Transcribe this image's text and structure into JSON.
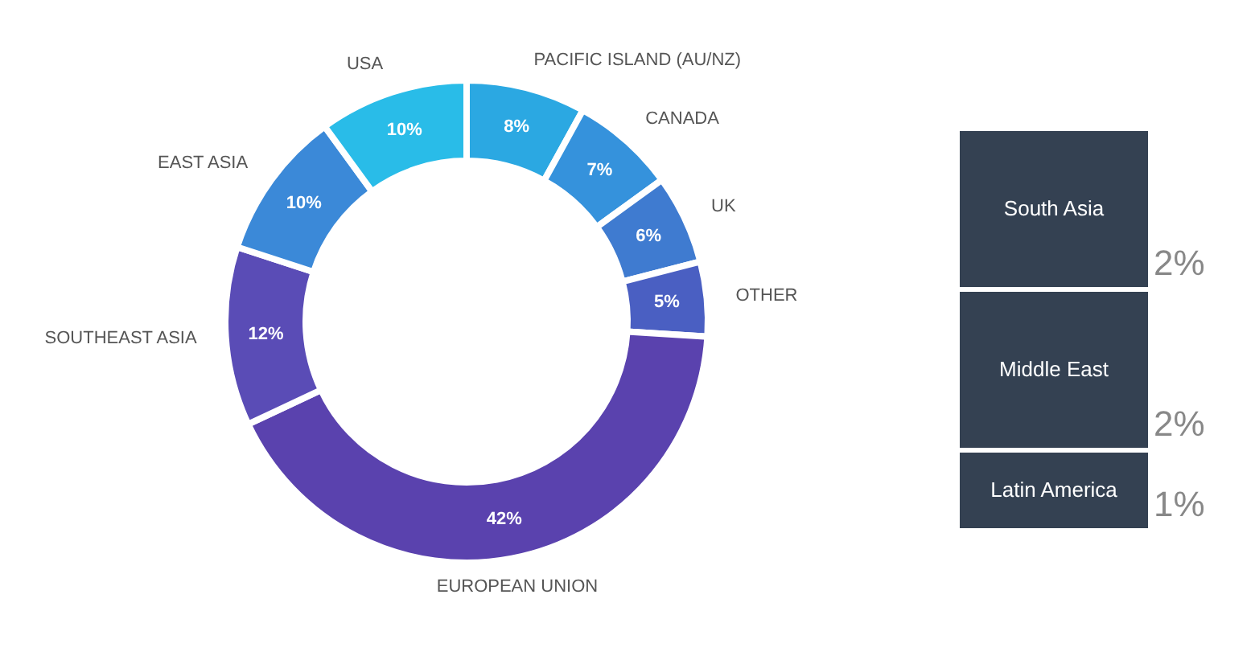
{
  "chart_data": [
    {
      "type": "donut",
      "categories": [
        "PACIFIC ISLAND (AU/NZ)",
        "CANADA",
        "UK",
        "OTHER",
        "EUROPEAN UNION",
        "SOUTHEAST ASIA",
        "EAST ASIA",
        "USA"
      ],
      "values": [
        8,
        7,
        6,
        5,
        42,
        12,
        10,
        10
      ],
      "value_labels": [
        "8%",
        "7%",
        "6%",
        "5%",
        "42%",
        "12%",
        "10%",
        "10%"
      ],
      "colors": [
        "#2ba8e2",
        "#3592dc",
        "#3f7bd0",
        "#4a5fc2",
        "#5a42ae",
        "#5a4cb6",
        "#3b89d8",
        "#29bce8"
      ]
    },
    {
      "type": "bar",
      "stacked": true,
      "categories": [
        null
      ],
      "series": [
        {
          "name": "Latin America",
          "color": "#344152",
          "values": [
            1
          ],
          "value_labels": [
            "1%"
          ]
        },
        {
          "name": "Middle East",
          "color": "#344152",
          "values": [
            2
          ],
          "value_labels": [
            "2%"
          ]
        },
        {
          "name": "South Asia",
          "color": "#344152",
          "values": [
            2
          ],
          "value_labels": [
            "2%"
          ]
        }
      ]
    }
  ]
}
